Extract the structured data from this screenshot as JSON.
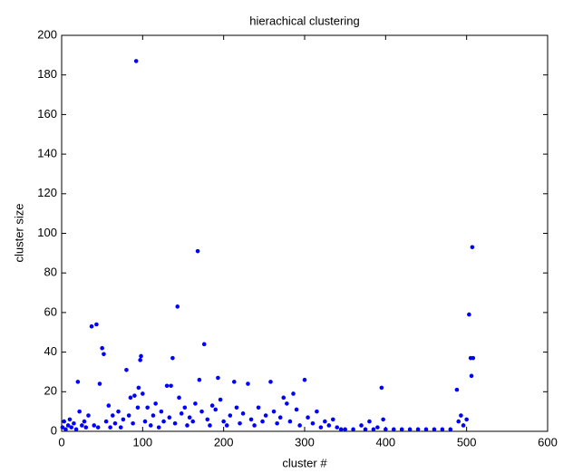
{
  "chart_data": {
    "type": "scatter",
    "title": "hierachical clustering",
    "x_label": "cluster #",
    "y_label": "cluster size",
    "color": "#0000ff",
    "x": [
      1,
      3,
      5,
      8,
      10,
      12,
      15,
      18,
      20,
      22,
      25,
      28,
      30,
      33,
      37,
      40,
      43,
      45,
      47,
      50,
      52,
      55,
      58,
      60,
      63,
      66,
      70,
      73,
      76,
      80,
      83,
      85,
      88,
      90,
      92,
      94,
      95,
      97,
      98,
      100,
      103,
      106,
      110,
      113,
      116,
      120,
      123,
      126,
      130,
      133,
      135,
      137,
      140,
      143,
      145,
      148,
      152,
      155,
      158,
      162,
      165,
      168,
      170,
      173,
      176,
      180,
      183,
      186,
      190,
      193,
      196,
      200,
      204,
      208,
      213,
      216,
      220,
      224,
      230,
      234,
      238,
      243,
      248,
      252,
      258,
      262,
      266,
      270,
      274,
      278,
      282,
      286,
      290,
      294,
      300,
      304,
      310,
      315,
      320,
      325,
      330,
      335,
      340,
      345,
      350,
      360,
      370,
      375,
      380,
      385,
      390,
      395,
      397,
      400,
      410,
      420,
      430,
      440,
      450,
      460,
      470,
      480,
      488,
      490,
      493,
      496,
      500,
      503,
      505,
      506,
      507,
      508
    ],
    "y": [
      2,
      5,
      1,
      3,
      6,
      2,
      4,
      1,
      25,
      10,
      3,
      5,
      2,
      8,
      53,
      3,
      54,
      2,
      24,
      42,
      39,
      5,
      13,
      2,
      8,
      4,
      10,
      2,
      6,
      31,
      8,
      17,
      4,
      18,
      187,
      12,
      22,
      36,
      38,
      19,
      5,
      12,
      3,
      8,
      14,
      2,
      10,
      5,
      23,
      7,
      23,
      37,
      4,
      63,
      17,
      9,
      12,
      3,
      7,
      5,
      14,
      91,
      26,
      10,
      44,
      6,
      3,
      13,
      11,
      27,
      16,
      5,
      3,
      8,
      25,
      12,
      4,
      9,
      24,
      6,
      3,
      12,
      5,
      8,
      25,
      10,
      4,
      7,
      17,
      14,
      5,
      19,
      11,
      3,
      26,
      7,
      4,
      10,
      2,
      5,
      3,
      6,
      2,
      1,
      1,
      1,
      3,
      1,
      5,
      1,
      2,
      22,
      6,
      1,
      1,
      1,
      1,
      1,
      1,
      1,
      1,
      1,
      21,
      5,
      8,
      3,
      6,
      59,
      37,
      28,
      93,
      37
    ],
    "xlim": [
      0,
      600
    ],
    "xticks": [
      0,
      100,
      200,
      300,
      400,
      500,
      600
    ],
    "ylim": [
      0,
      200
    ],
    "yticks": [
      0,
      20,
      40,
      60,
      80,
      100,
      120,
      140,
      160,
      180,
      200
    ]
  }
}
